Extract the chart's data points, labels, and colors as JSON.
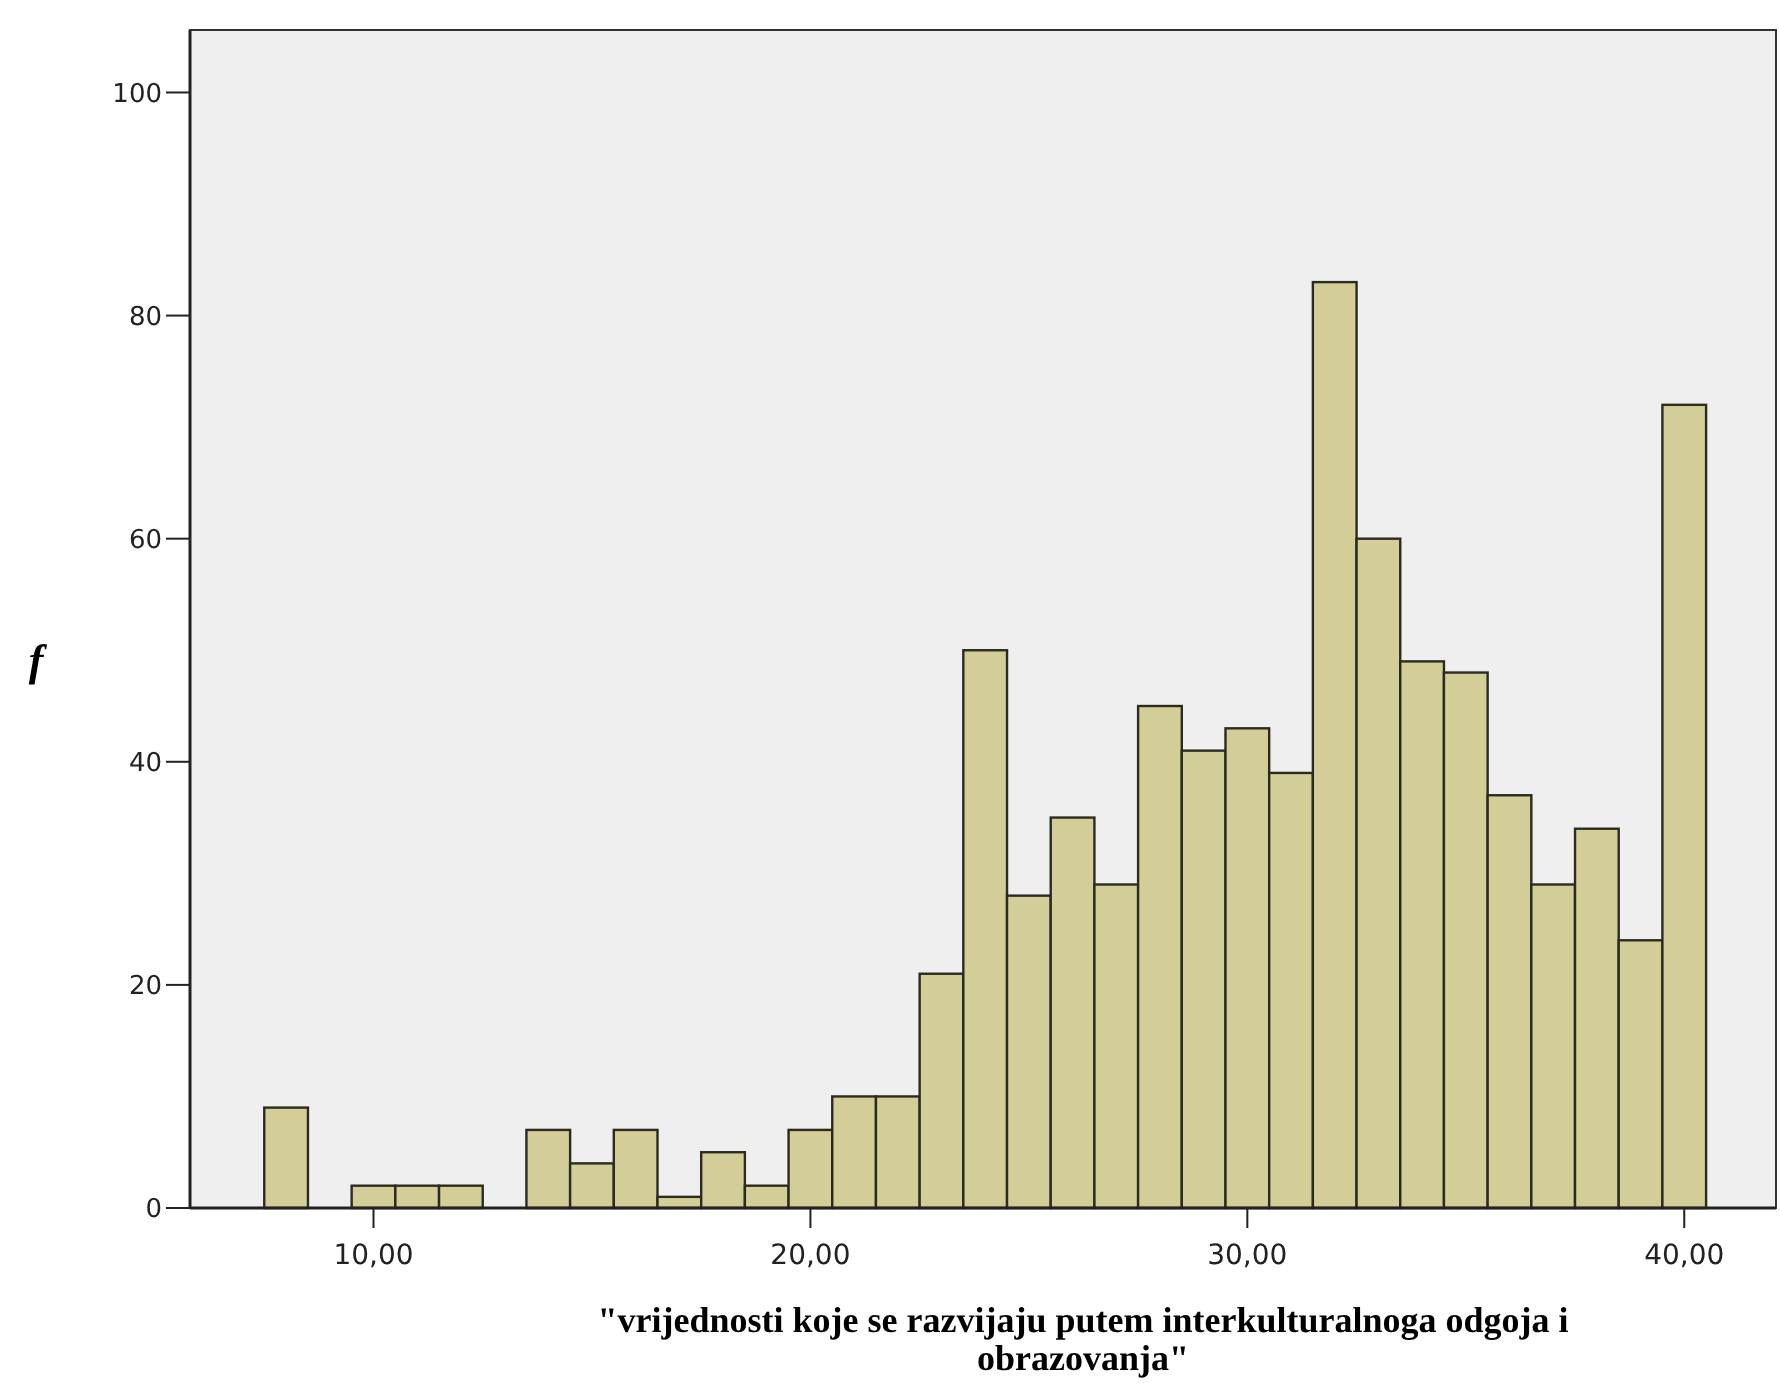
{
  "chart_data": {
    "type": "histogram",
    "xlabel": "\"vrijednosti koje se razvijaju putem interkulturalnoga odgoja i obrazovanja\"",
    "ylabel": "f",
    "bins": [
      7.5,
      8.5,
      9.5,
      10.5,
      11.5,
      12.5,
      13.5,
      14.5,
      15.5,
      16.5,
      17.5,
      18.5,
      19.5,
      20.5,
      21.5,
      22.5,
      23.5,
      24.5,
      25.5,
      26.5,
      27.5,
      28.5,
      29.5,
      30.5,
      31.5,
      32.5,
      33.5,
      34.5,
      35.5,
      36.5,
      37.5,
      38.5,
      39.5,
      40.5
    ],
    "values": [
      9,
      0,
      2,
      2,
      2,
      0,
      7,
      4,
      7,
      1,
      5,
      2,
      7,
      10,
      10,
      21,
      50,
      28,
      35,
      29,
      45,
      41,
      43,
      39,
      83,
      60,
      49,
      48,
      37,
      29,
      34,
      24,
      72
    ],
    "color": "#d3ce97",
    "xlim": [
      5.8,
      42.1
    ],
    "xticks": [
      {
        "value": 10,
        "label": "10,00"
      },
      {
        "value": 20,
        "label": "20,00"
      },
      {
        "value": 30,
        "label": "30,00"
      },
      {
        "value": 40,
        "label": "40,00"
      }
    ],
    "ylim": [
      0,
      105.6
    ],
    "yticks": [
      0,
      20,
      40,
      60,
      80,
      100
    ],
    "grid": false
  }
}
